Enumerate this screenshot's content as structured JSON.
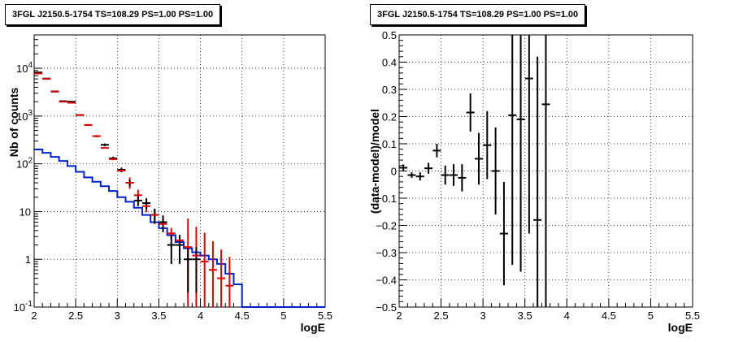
{
  "chart_data": [
    {
      "type": "line",
      "title": "3FGL J2150.5-1754 TS=108.29 PS=1.00 PS=1.00",
      "xlabel": "logE",
      "ylabel": "Nb of counts",
      "xlim": [
        2,
        5.5
      ],
      "ylim": [
        0.1,
        50000
      ],
      "y_scale": "log",
      "grid": true,
      "x_ticks": [
        "2",
        "2.5",
        "3",
        "3.5",
        "4",
        "4.5",
        "5",
        "5.5"
      ],
      "y_ticks": [
        {
          "value": 0.1,
          "label": "10",
          "sup": "-1"
        },
        {
          "value": 1,
          "label": "1",
          "sup": ""
        },
        {
          "value": 10,
          "label": "10",
          "sup": ""
        },
        {
          "value": 100,
          "label": "10",
          "sup": "2"
        },
        {
          "value": 1000,
          "label": "10",
          "sup": "3"
        },
        {
          "value": 10000,
          "label": "10",
          "sup": "4"
        }
      ],
      "bin_edges": [
        2.0,
        2.1,
        2.2,
        2.3,
        2.4,
        2.5,
        2.6,
        2.7,
        2.8,
        2.9,
        3.0,
        3.1,
        3.2,
        3.3,
        3.4,
        3.5,
        3.6,
        3.7,
        3.8,
        3.9,
        4.0,
        4.1,
        4.2,
        4.3,
        4.4,
        4.5,
        4.6,
        4.7,
        4.8,
        4.9,
        5.0,
        5.1,
        5.2,
        5.3,
        5.4,
        5.5
      ],
      "series": [
        {
          "role": "source_model",
          "style": "step",
          "color": "#0022cc",
          "values": [
            200,
            170,
            140,
            115,
            90,
            68,
            52,
            42,
            34,
            27,
            20,
            16,
            12,
            8.5,
            6,
            4.5,
            3.2,
            2.3,
            1.7,
            1.4,
            1.2,
            1.0,
            0.8,
            0.5,
            0.3,
            0.1,
            0.1,
            0.1,
            0.1,
            0.1,
            0.1,
            0.1,
            0.1,
            0.1,
            0.1
          ]
        },
        {
          "role": "total_model",
          "style": "markers",
          "color": "#e00000",
          "x": [
            2.05,
            2.15,
            2.25,
            2.35,
            2.45,
            2.55,
            2.65,
            2.75,
            2.85,
            2.95,
            3.05,
            3.15,
            3.25,
            3.35,
            3.45,
            3.55,
            3.65,
            3.75,
            3.85,
            3.95,
            4.05,
            4.15,
            4.25,
            4.35
          ],
          "y": [
            7800,
            6000,
            3300,
            2000,
            1900,
            1050,
            650,
            380,
            215,
            125,
            72,
            40,
            22,
            13,
            8.5,
            5.5,
            3.5,
            2.5,
            1.8,
            1.2,
            0.9,
            0.6,
            0.4,
            0.28
          ],
          "err_low": [
            0,
            0,
            0,
            0,
            0,
            0,
            0,
            0,
            0,
            0,
            0,
            0,
            0,
            0,
            0,
            0,
            0,
            0,
            0,
            0,
            0,
            0,
            0,
            0
          ],
          "err_high": [
            0,
            0,
            0,
            0,
            0,
            0,
            0,
            0,
            0,
            0,
            0,
            0,
            0,
            0,
            0,
            0,
            0,
            0,
            0,
            0,
            0,
            0,
            0,
            0
          ]
        },
        {
          "role": "data",
          "style": "errorbars",
          "color": "#000000",
          "x": [
            2.05,
            2.15,
            2.25,
            2.35,
            2.45,
            2.55,
            2.65,
            2.75,
            2.85,
            2.95,
            3.05,
            3.15,
            3.25,
            3.35,
            3.45,
            3.55,
            3.65,
            3.75,
            3.85,
            3.95
          ],
          "y": [
            8200,
            6100,
            3250,
            2050,
            2000,
            1050,
            650,
            380,
            250,
            130,
            75,
            40,
            17,
            15,
            8.5,
            6,
            2,
            2,
            1,
            1
          ],
          "err_low": [
            90,
            78,
            57,
            45,
            45,
            32,
            25,
            19,
            16,
            11,
            8.5,
            6,
            4,
            4,
            3,
            2.3,
            1.2,
            1.2,
            0.8,
            0.8
          ],
          "err_high": [
            90,
            78,
            57,
            45,
            45,
            32,
            25,
            19,
            16,
            11,
            8.5,
            6,
            4,
            4,
            3,
            2.3,
            1.2,
            1.2,
            0.8,
            0.8
          ]
        }
      ]
    },
    {
      "type": "scatter",
      "title": "3FGL J2150.5-1754 TS=108.29 PS=1.00 PS=1.00",
      "xlabel": "logE",
      "ylabel": "(data-model)/model",
      "xlim": [
        2,
        5.5
      ],
      "ylim": [
        -0.5,
        0.5
      ],
      "grid": true,
      "x_ticks": [
        "2",
        "2.5",
        "3",
        "3.5",
        "4",
        "4.5",
        "5",
        "5.5"
      ],
      "y_ticks": [
        "-0.5",
        "-0.4",
        "-0.3",
        "-0.2",
        "-0.1",
        "0",
        "0.1",
        "0.2",
        "0.3",
        "0.4",
        "0.5"
      ],
      "series": [
        {
          "role": "residuals",
          "color": "#000000",
          "x": [
            2.05,
            2.15,
            2.25,
            2.35,
            2.45,
            2.55,
            2.65,
            2.75,
            2.85,
            2.95,
            3.05,
            3.15,
            3.25,
            3.35,
            3.45,
            3.55,
            3.65,
            3.75
          ],
          "y": [
            0.012,
            -0.015,
            -0.02,
            0.01,
            0.075,
            -0.015,
            -0.015,
            -0.025,
            0.215,
            0.045,
            0.095,
            0.0,
            -0.23,
            0.205,
            0.19,
            0.34,
            -0.18,
            0.245
          ],
          "err_low": [
            0.012,
            0.01,
            0.015,
            0.02,
            0.025,
            0.035,
            0.04,
            0.05,
            0.07,
            0.095,
            0.125,
            0.16,
            0.19,
            0.55,
            0.56,
            0.57,
            0.6,
            0.75
          ],
          "err_high": [
            0.012,
            0.01,
            0.015,
            0.02,
            0.025,
            0.035,
            0.04,
            0.05,
            0.07,
            0.095,
            0.125,
            0.16,
            0.19,
            0.55,
            0.56,
            0.57,
            0.6,
            0.75
          ]
        }
      ]
    }
  ]
}
